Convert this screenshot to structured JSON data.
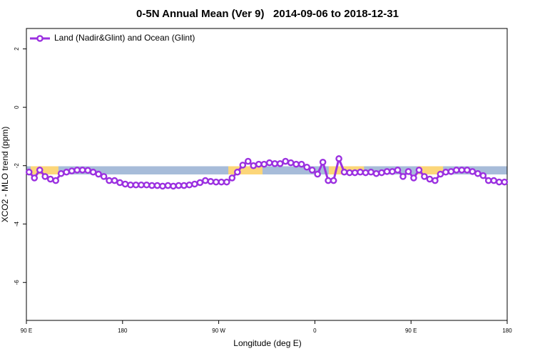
{
  "chart_data": {
    "type": "line",
    "title": "0-5N Annual Mean (Ver 9)   2014-09-06 to 2018-12-31",
    "x_label": "Longitude (deg E)",
    "y_label": "XCO2 - MLO trend (ppm)",
    "xlim": [
      90,
      540
    ],
    "ylim": [
      -7.3,
      2.7
    ],
    "xticks": [
      {
        "value": 90,
        "label": "90 E"
      },
      180,
      {
        "value": 270,
        "label": "90 W"
      },
      {
        "value": 360,
        "label": "0"
      },
      {
        "value": 450,
        "label": "90 E"
      },
      {
        "value": 540,
        "label": "180"
      }
    ],
    "yticks": [
      2,
      0,
      -2,
      -4,
      -6
    ],
    "legend": "top-left",
    "background_band": {
      "ylim": [
        -2.3,
        -2.02
      ],
      "color": "#a7bcd9",
      "land_color": "#fcd679",
      "land_x": [
        [
          94,
          120
        ],
        [
          279,
          311
        ],
        [
          373,
          406
        ],
        [
          456,
          480
        ]
      ]
    },
    "x": [
      92.5,
      97.5,
      102.5,
      107.5,
      112.5,
      117.5,
      122.5,
      127.5,
      132.5,
      137.5,
      142.5,
      147.5,
      152.5,
      157.5,
      162.5,
      167.5,
      172.5,
      177.5,
      182.5,
      187.5,
      192.5,
      197.5,
      202.5,
      207.5,
      212.5,
      217.5,
      222.5,
      227.5,
      232.5,
      237.5,
      242.5,
      247.5,
      252.5,
      257.5,
      262.5,
      267.5,
      272.5,
      277.5,
      282.5,
      287.5,
      292.5,
      297.5,
      302.5,
      307.5,
      312.5,
      317.5,
      322.5,
      327.5,
      332.5,
      337.5,
      342.5,
      347.5,
      352.5,
      357.5,
      362.5,
      367.5,
      372.5,
      377.5,
      382.5,
      387.5,
      392.5,
      397.5,
      402.5,
      407.5,
      412.5,
      417.5,
      422.5,
      427.5,
      432.5,
      437.5,
      442.5,
      447.5,
      452.5,
      457.5,
      462.5,
      467.5,
      472.5,
      477.5,
      482.5,
      487.5,
      492.5,
      497.5,
      502.5,
      507.5,
      512.5,
      517.5,
      522.5,
      527.5,
      532.5,
      537.5
    ],
    "series": [
      {
        "name": "Land (Nadir&Glint) and Ocean (Glint)",
        "color": "#9b30e0",
        "values": [
          -2.22,
          -2.42,
          -2.15,
          -2.37,
          -2.46,
          -2.51,
          -2.27,
          -2.22,
          -2.18,
          -2.15,
          -2.15,
          -2.16,
          -2.22,
          -2.29,
          -2.37,
          -2.51,
          -2.51,
          -2.58,
          -2.63,
          -2.66,
          -2.66,
          -2.66,
          -2.66,
          -2.68,
          -2.68,
          -2.7,
          -2.68,
          -2.7,
          -2.68,
          -2.68,
          -2.66,
          -2.63,
          -2.58,
          -2.51,
          -2.54,
          -2.56,
          -2.56,
          -2.56,
          -2.42,
          -2.22,
          -1.98,
          -1.85,
          -2.0,
          -1.95,
          -1.95,
          -1.9,
          -1.93,
          -1.93,
          -1.85,
          -1.9,
          -1.95,
          -1.95,
          -2.05,
          -2.15,
          -2.29,
          -1.88,
          -2.51,
          -2.51,
          -1.76,
          -2.22,
          -2.24,
          -2.24,
          -2.22,
          -2.24,
          -2.22,
          -2.27,
          -2.24,
          -2.2,
          -2.2,
          -2.15,
          -2.37,
          -2.2,
          -2.42,
          -2.15,
          -2.37,
          -2.46,
          -2.51,
          -2.29,
          -2.22,
          -2.2,
          -2.15,
          -2.15,
          -2.15,
          -2.2,
          -2.27,
          -2.34,
          -2.51,
          -2.51,
          -2.56,
          -2.56
        ]
      }
    ]
  }
}
